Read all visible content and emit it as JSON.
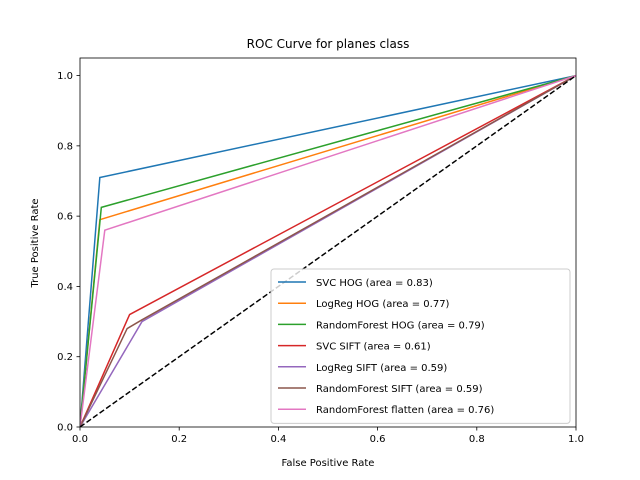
{
  "chart_data": {
    "type": "line",
    "title": "ROC Curve for planes class",
    "xlabel": "False Positive Rate",
    "ylabel": "True Positive Rate",
    "xlim": [
      0,
      1
    ],
    "ylim": [
      0,
      1.05
    ],
    "xticks": [
      "0.0",
      "0.2",
      "0.4",
      "0.6",
      "0.8",
      "1.0"
    ],
    "yticks": [
      "0.0",
      "0.2",
      "0.4",
      "0.6",
      "0.8",
      "1.0"
    ],
    "grid": false,
    "legend_position": "lower-right",
    "diagonal": {
      "x": [
        0,
        1
      ],
      "y": [
        0,
        1
      ],
      "color": "#000000",
      "style": "dashed"
    },
    "series": [
      {
        "name": "SVC HOG (area = 0.83)",
        "color": "#1f77b4",
        "x": [
          0,
          0.04,
          1
        ],
        "y": [
          0,
          0.71,
          1
        ]
      },
      {
        "name": "LogReg HOG (area = 0.77)",
        "color": "#ff7f0e",
        "x": [
          0,
          0.04,
          1
        ],
        "y": [
          0,
          0.59,
          1
        ]
      },
      {
        "name": "RandomForest HOG (area = 0.79)",
        "color": "#2ca02c",
        "x": [
          0,
          0.043,
          1
        ],
        "y": [
          0,
          0.625,
          1
        ]
      },
      {
        "name": "SVC SIFT (area = 0.61)",
        "color": "#d62728",
        "x": [
          0,
          0.1,
          1
        ],
        "y": [
          0,
          0.32,
          1
        ]
      },
      {
        "name": "LogReg SIFT (area = 0.59)",
        "color": "#9467bd",
        "x": [
          0,
          0.125,
          1
        ],
        "y": [
          0,
          0.3,
          1
        ]
      },
      {
        "name": "RandomForest SIFT (area = 0.59)",
        "color": "#8c564b",
        "x": [
          0,
          0.095,
          0.125,
          1
        ],
        "y": [
          0,
          0.28,
          0.305,
          1
        ]
      },
      {
        "name": "RandomForest flatten (area = 0.76)",
        "color": "#e377c2",
        "x": [
          0,
          0.05,
          1
        ],
        "y": [
          0,
          0.56,
          1
        ]
      }
    ]
  }
}
